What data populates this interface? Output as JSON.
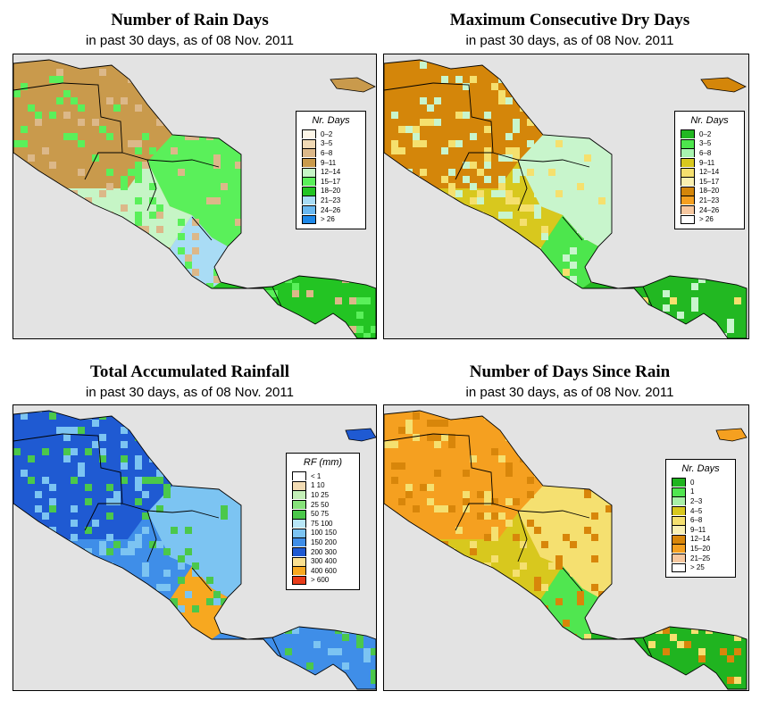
{
  "panels": [
    {
      "title": "Number of Rain Days",
      "subtitle": "in past 30 days, as of  08 Nov. 2011",
      "legend": {
        "title": "Nr. Days",
        "items": [
          {
            "label": "0–2",
            "color": "#fdf6e8"
          },
          {
            "label": "3–5",
            "color": "#f0d9b5"
          },
          {
            "label": "6–8",
            "color": "#dcb889"
          },
          {
            "label": "9–11",
            "color": "#c99a4c"
          },
          {
            "label": "12–14",
            "color": "#c6f5c6"
          },
          {
            "label": "15–17",
            "color": "#5af05a"
          },
          {
            "label": "18–20",
            "color": "#23c423"
          },
          {
            "label": "21–23",
            "color": "#a9dcf5"
          },
          {
            "label": "24–26",
            "color": "#6ab8f0"
          },
          {
            "label": "> 26",
            "color": "#1e88e8"
          }
        ]
      },
      "regions": {
        "north": "#c99a4c",
        "nicaragua": "#5af05a",
        "gulf": "#c6f5c6",
        "south": "#23c423",
        "accent": "#dcb889",
        "costa": "#a9dcf5"
      }
    },
    {
      "title": "Maximum Consecutive Dry Days",
      "subtitle": "in past 30 days, as of  08 Nov. 2011",
      "legend": {
        "title": "Nr. Days",
        "items": [
          {
            "label": "0–2",
            "color": "#22b822"
          },
          {
            "label": "3–5",
            "color": "#4de64d"
          },
          {
            "label": "6–8",
            "color": "#a8f5b0"
          },
          {
            "label": "9–11",
            "color": "#d8c81e"
          },
          {
            "label": "12–14",
            "color": "#f5e06e"
          },
          {
            "label": "15–17",
            "color": "#faf0b0"
          },
          {
            "label": "18–20",
            "color": "#d4860a"
          },
          {
            "label": "21–23",
            "color": "#f5a020"
          },
          {
            "label": "24–26",
            "color": "#f7c8a0"
          },
          {
            "label": "> 26",
            "color": "#ffffff"
          }
        ]
      },
      "regions": {
        "north": "#d4860a",
        "nicaragua": "#c8f5cc",
        "gulf": "#d8c81e",
        "south": "#22b822",
        "accent": "#f5e06e",
        "costa": "#4de64d"
      }
    },
    {
      "title": "Total Accumulated Rainfall",
      "subtitle": "in past 30 days, as of  08 Nov. 2011",
      "legend": {
        "title": "RF (mm)",
        "items": [
          {
            "label": "< 1",
            "color": "#ffffff"
          },
          {
            "label": "1  10",
            "color": "#f2dcb4"
          },
          {
            "label": "10  25",
            "color": "#c4f0b8"
          },
          {
            "label": "25  50",
            "color": "#86e27a"
          },
          {
            "label": "50  75",
            "color": "#4bc84b"
          },
          {
            "label": "75  100",
            "color": "#b8e6f7"
          },
          {
            "label": "100  150",
            "color": "#7cc4f2"
          },
          {
            "label": "150  200",
            "color": "#3f8ee8"
          },
          {
            "label": "200  300",
            "color": "#1f5ad2"
          },
          {
            "label": "300  400",
            "color": "#fae090"
          },
          {
            "label": "400  600",
            "color": "#f7a820"
          },
          {
            "label": "> 600",
            "color": "#e83c1a"
          }
        ]
      },
      "regions": {
        "north": "#1f5ad2",
        "nicaragua": "#7cc4f2",
        "gulf": "#3f8ee8",
        "south": "#3f8ee8",
        "accent": "#4bc84b",
        "costa": "#f7a820"
      }
    },
    {
      "title": "Number of Days Since Rain",
      "subtitle": "in past 30 days, as of  08 Nov. 2011",
      "legend": {
        "title": "Nr. Days",
        "items": [
          {
            "label": "0",
            "color": "#20b420"
          },
          {
            "label": "1",
            "color": "#50e650"
          },
          {
            "label": "2–3",
            "color": "#a8f0a8"
          },
          {
            "label": "4–5",
            "color": "#d8c81e"
          },
          {
            "label": "6–8",
            "color": "#f5e070"
          },
          {
            "label": "9–11",
            "color": "#faf0b4"
          },
          {
            "label": "12–14",
            "color": "#d8860a"
          },
          {
            "label": "15–20",
            "color": "#f5a020"
          },
          {
            "label": "21–25",
            "color": "#f7c8a0"
          },
          {
            "label": "> 25",
            "color": "#ffffff"
          }
        ]
      },
      "regions": {
        "north": "#f5a020",
        "nicaragua": "#f5e070",
        "gulf": "#d8c81e",
        "south": "#20b420",
        "accent": "#d8860a",
        "costa": "#50e650"
      }
    }
  ]
}
